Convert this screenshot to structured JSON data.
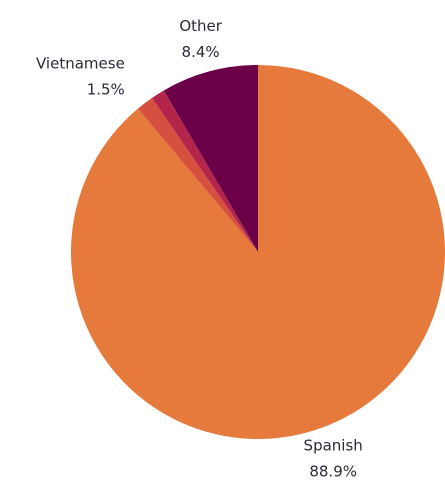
{
  "chart_data": {
    "type": "pie",
    "categories": [
      "Spanish",
      "Vietnamese",
      null,
      "Other"
    ],
    "values": [
      88.9,
      1.5,
      1.2,
      8.4
    ],
    "value_labels": [
      "88.9%",
      "1.5%",
      null,
      "8.4%"
    ],
    "colors": [
      "#e57a3c",
      "#d5503f",
      "#b3254a",
      "#6c0048"
    ]
  }
}
